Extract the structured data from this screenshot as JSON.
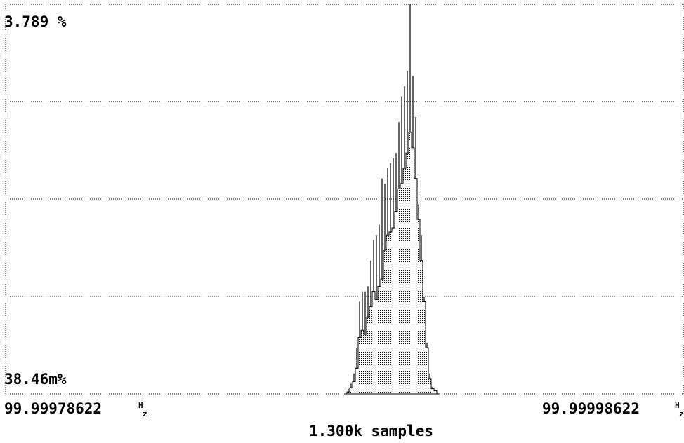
{
  "chart_data": {
    "type": "histogram",
    "y_top_label": "3.789 %",
    "y_bottom_label": "38.46m%",
    "x_left_value": "99.99978622",
    "x_right_value": "99.99998622",
    "x_unit_top": "H",
    "x_unit_bottom": "z",
    "samples_label": "1.300k samples",
    "xlim": [
      99.99978622,
      99.99998622
    ],
    "ylim_percent": [
      0.03846,
      3.789
    ],
    "grid": "horizontal-dotted",
    "colors": {
      "line": "#000000",
      "fill_dot": "#000000",
      "grid": "#000000",
      "background": "#ffffff"
    },
    "envelope_percent": [
      0,
      0.02,
      0.06,
      0.12,
      0.25,
      0.55,
      0.62,
      0.58,
      0.75,
      0.85,
      1.0,
      0.92,
      1.05,
      1.12,
      1.4,
      1.55,
      1.58,
      1.62,
      1.78,
      2.0,
      2.05,
      2.2,
      2.35,
      2.55,
      2.4,
      2.1,
      1.7,
      1.3,
      0.9,
      0.45,
      0.15,
      0.05,
      0.03,
      0
    ],
    "spikes_percent": [
      0,
      0.05,
      0.1,
      0.2,
      0.45,
      0.9,
      1.0,
      1.0,
      1.05,
      1.3,
      1.5,
      1.55,
      1.65,
      2.1,
      2.05,
      2.2,
      2.25,
      2.3,
      2.35,
      2.65,
      2.9,
      3.0,
      3.15,
      3.8,
      3.1,
      2.7,
      1.85,
      1.55,
      0.95,
      0.5,
      0.2,
      0.07,
      0.03,
      0
    ]
  }
}
